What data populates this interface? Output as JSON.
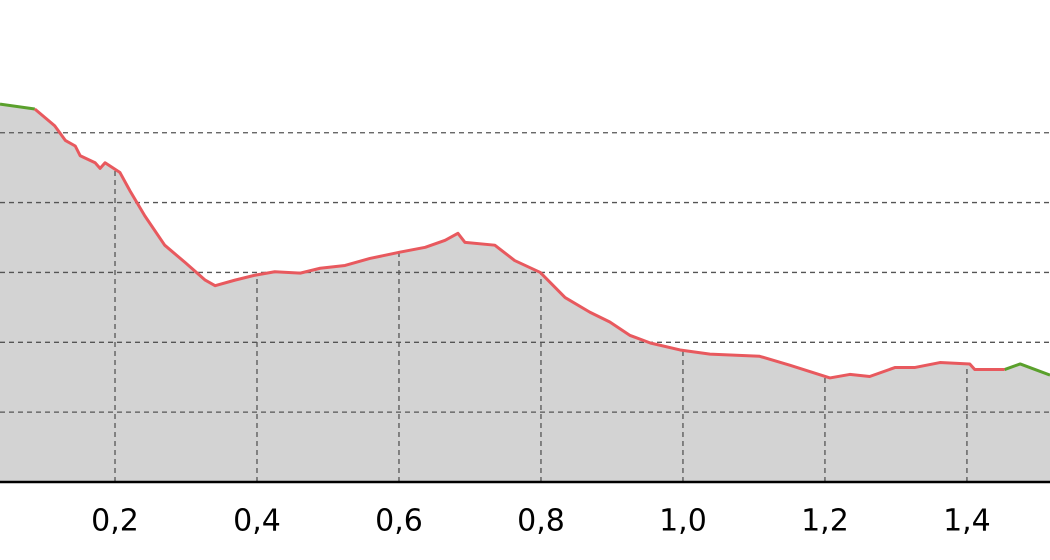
{
  "chart_data": {
    "type": "area-line",
    "x": [
      0.038,
      0.087,
      0.115,
      0.13,
      0.144,
      0.151,
      0.172,
      0.179,
      0.186,
      0.207,
      0.221,
      0.242,
      0.27,
      0.299,
      0.327,
      0.341,
      0.369,
      0.397,
      0.425,
      0.461,
      0.489,
      0.524,
      0.559,
      0.601,
      0.637,
      0.665,
      0.683,
      0.693,
      0.735,
      0.763,
      0.799,
      0.834,
      0.869,
      0.897,
      0.925,
      0.954,
      0.996,
      1.038,
      1.108,
      1.151,
      1.207,
      1.235,
      1.263,
      1.299,
      1.327,
      1.362,
      1.404,
      1.411,
      1.453,
      1.475,
      1.517
    ],
    "series": [
      {
        "color": "#5aa02c",
        "values": [
          5.41,
          5.34,
          null,
          null,
          null,
          null,
          null,
          null,
          null,
          null,
          null,
          null,
          null,
          null,
          null,
          null,
          null,
          null,
          null,
          null,
          null,
          null,
          null,
          null,
          null,
          null,
          null,
          null,
          null,
          null,
          null,
          null,
          null,
          null,
          null,
          null,
          null,
          null,
          null,
          null,
          null,
          null,
          null,
          null,
          null,
          null,
          null,
          null,
          1.61,
          1.69,
          1.53
        ]
      },
      {
        "color": "#e8595e",
        "values": [
          null,
          5.34,
          5.1,
          4.89,
          4.81,
          4.67,
          4.57,
          4.49,
          4.57,
          4.43,
          4.17,
          3.81,
          3.39,
          3.14,
          2.89,
          2.81,
          2.89,
          2.96,
          3.01,
          2.99,
          3.06,
          3.1,
          3.2,
          3.29,
          3.36,
          3.46,
          3.56,
          3.43,
          3.39,
          3.17,
          3.0,
          2.64,
          2.43,
          2.29,
          2.1,
          1.99,
          1.89,
          1.83,
          1.8,
          1.67,
          1.49,
          1.54,
          1.51,
          1.64,
          1.64,
          1.71,
          1.69,
          1.61,
          1.61,
          null,
          null
        ]
      }
    ],
    "fill_color": "#d3d3d3",
    "xlim": [
      0.038,
      1.517
    ],
    "ylim": [
      0,
      6.9
    ],
    "xticks": [
      {
        "value": 0.2,
        "label": "0,2"
      },
      {
        "value": 0.4,
        "label": "0,4"
      },
      {
        "value": 0.6,
        "label": "0,6"
      },
      {
        "value": 0.8,
        "label": "0,8"
      },
      {
        "value": 1.0,
        "label": "1,0"
      },
      {
        "value": 1.2,
        "label": "1,2"
      },
      {
        "value": 1.4,
        "label": "1,4"
      }
    ],
    "yticks": [
      1,
      2,
      3,
      4,
      5
    ],
    "grid": true
  }
}
